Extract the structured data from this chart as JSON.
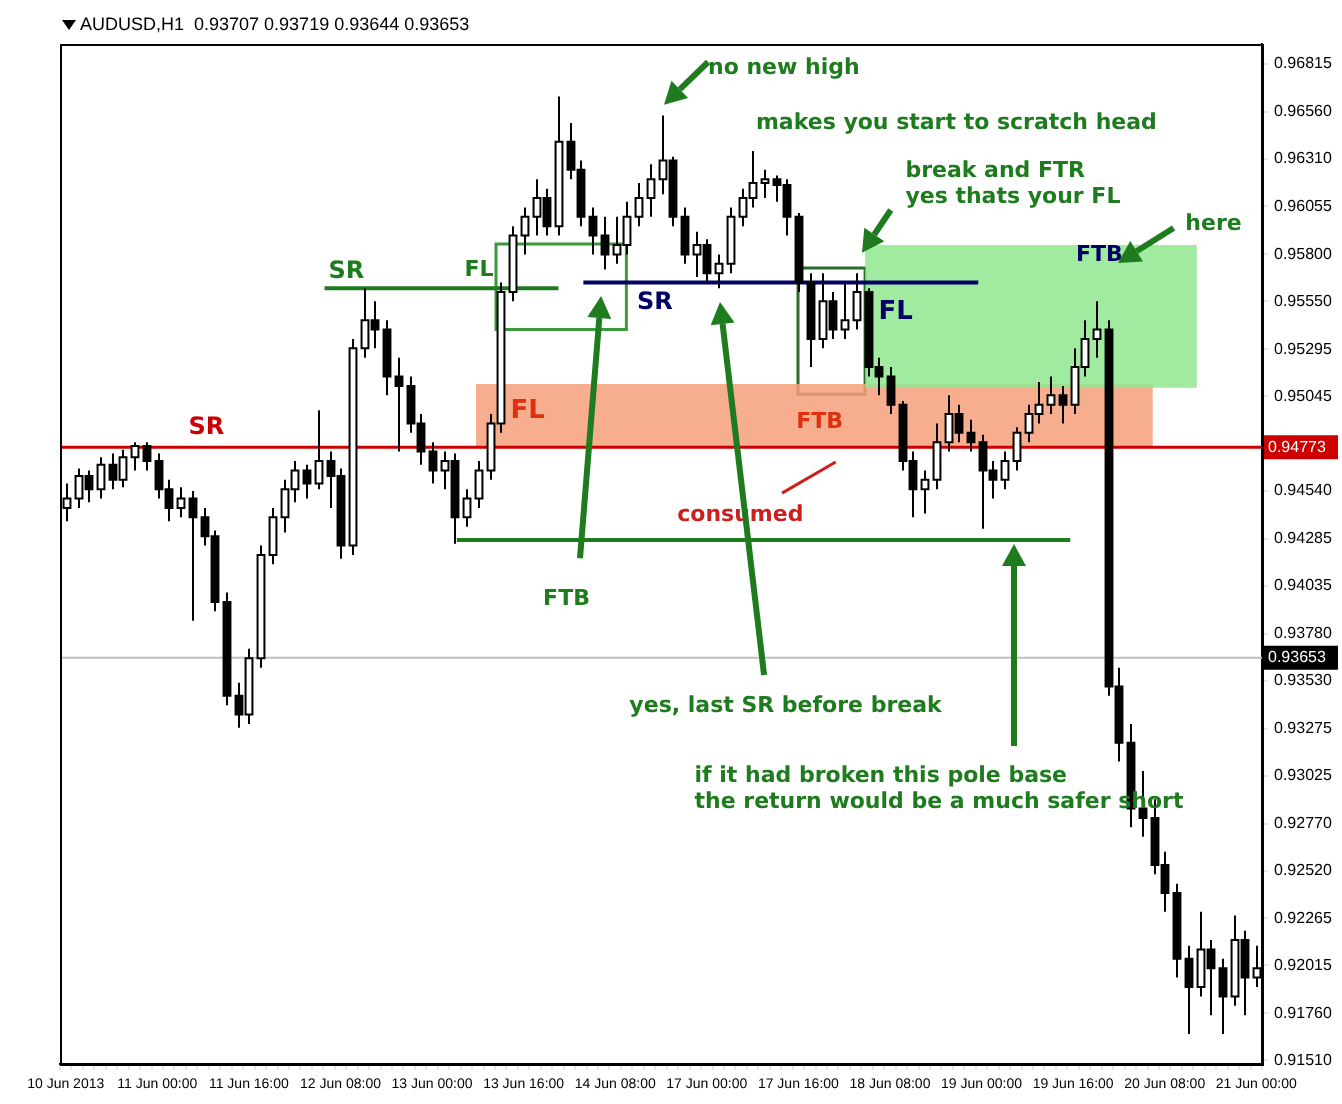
{
  "chart_data": {
    "type": "candlestick",
    "title": "AUDUSD,H1  0.93707 0.93719 0.93644 0.93653",
    "categories": [
      "10 Jun 2013",
      null,
      null,
      null,
      null,
      null,
      null,
      null,
      "11 Jun 00:00",
      null,
      null,
      null,
      null,
      null,
      null,
      null,
      "11 Jun 16:00",
      null,
      null,
      null,
      null,
      null,
      null,
      null,
      "12 Jun 08:00",
      null,
      null,
      null,
      null,
      null,
      null,
      null,
      "13 Jun 00:00",
      null,
      null,
      null,
      null,
      null,
      null,
      null,
      "13 Jun 16:00",
      null,
      null,
      null,
      null,
      null,
      null,
      null,
      "14 Jun 08:00",
      null,
      null,
      null,
      null,
      null,
      null,
      null,
      "17 Jun 00:00",
      null,
      null,
      null,
      null,
      null,
      null,
      null,
      "17 Jun 16:00",
      null,
      null,
      null,
      null,
      null,
      null,
      null,
      "18 Jun 08:00",
      null,
      null,
      null,
      null,
      null,
      null,
      null,
      "19 Jun 00:00",
      null,
      null,
      null,
      null,
      null,
      null,
      null,
      "19 Jun 16:00",
      null,
      null,
      null,
      null,
      null,
      null,
      null,
      "20 Jun 08:00",
      null,
      null,
      null,
      null,
      null,
      null,
      null,
      "21 Jun 00:00"
    ],
    "ohlc": [
      [
        0.9445,
        0.9458,
        0.9438,
        0.945
      ],
      [
        0.945,
        0.9466,
        0.9445,
        0.9462
      ],
      [
        0.9462,
        0.9465,
        0.9448,
        0.9455
      ],
      [
        0.9455,
        0.9472,
        0.945,
        0.9468
      ],
      [
        0.9468,
        0.9474,
        0.9455,
        0.946
      ],
      [
        0.946,
        0.9476,
        0.9456,
        0.9472
      ],
      [
        0.9472,
        0.948,
        0.9465,
        0.9478
      ],
      [
        0.9478,
        0.948,
        0.9465,
        0.947
      ],
      [
        0.947,
        0.9474,
        0.945,
        0.9455
      ],
      [
        0.9455,
        0.946,
        0.9438,
        0.9445
      ],
      [
        0.9445,
        0.9456,
        0.944,
        0.945
      ],
      [
        0.945,
        0.9454,
        0.9385,
        0.944
      ],
      [
        0.944,
        0.9445,
        0.9425,
        0.943
      ],
      [
        0.943,
        0.9433,
        0.939,
        0.9395
      ],
      [
        0.9395,
        0.94,
        0.934,
        0.9345
      ],
      [
        0.9345,
        0.9352,
        0.9328,
        0.9335
      ],
      [
        0.9335,
        0.937,
        0.933,
        0.9365
      ],
      [
        0.9365,
        0.9425,
        0.936,
        0.942
      ],
      [
        0.942,
        0.9445,
        0.9415,
        0.944
      ],
      [
        0.944,
        0.946,
        0.9432,
        0.9455
      ],
      [
        0.9455,
        0.947,
        0.9448,
        0.9465
      ],
      [
        0.9465,
        0.9468,
        0.945,
        0.9458
      ],
      [
        0.9458,
        0.9497,
        0.9455,
        0.947
      ],
      [
        0.947,
        0.9475,
        0.9445,
        0.9462
      ],
      [
        0.9462,
        0.9466,
        0.9418,
        0.9425
      ],
      [
        0.9425,
        0.9535,
        0.942,
        0.953
      ],
      [
        0.953,
        0.9562,
        0.9525,
        0.9545
      ],
      [
        0.9545,
        0.9555,
        0.953,
        0.954
      ],
      [
        0.954,
        0.9545,
        0.9505,
        0.9515
      ],
      [
        0.9515,
        0.9525,
        0.9475,
        0.951
      ],
      [
        0.951,
        0.9515,
        0.9485,
        0.949
      ],
      [
        0.949,
        0.9495,
        0.9468,
        0.9475
      ],
      [
        0.9475,
        0.948,
        0.9458,
        0.9465
      ],
      [
        0.9465,
        0.9475,
        0.9455,
        0.947
      ],
      [
        0.947,
        0.9474,
        0.9426,
        0.944
      ],
      [
        0.944,
        0.9455,
        0.9435,
        0.945
      ],
      [
        0.945,
        0.947,
        0.9445,
        0.9465
      ],
      [
        0.9465,
        0.9495,
        0.946,
        0.949
      ],
      [
        0.949,
        0.9565,
        0.9485,
        0.956
      ],
      [
        0.956,
        0.9595,
        0.9555,
        0.959
      ],
      [
        0.959,
        0.9605,
        0.958,
        0.96
      ],
      [
        0.96,
        0.962,
        0.959,
        0.961
      ],
      [
        0.961,
        0.9615,
        0.959,
        0.9595
      ],
      [
        0.9595,
        0.9664,
        0.959,
        0.964
      ],
      [
        0.964,
        0.965,
        0.962,
        0.9625
      ],
      [
        0.9625,
        0.963,
        0.9595,
        0.96
      ],
      [
        0.96,
        0.9605,
        0.958,
        0.959
      ],
      [
        0.959,
        0.96,
        0.9572,
        0.958
      ],
      [
        0.958,
        0.96,
        0.9575,
        0.9585
      ],
      [
        0.9585,
        0.9608,
        0.958,
        0.96
      ],
      [
        0.96,
        0.9618,
        0.9595,
        0.961
      ],
      [
        0.961,
        0.9628,
        0.96,
        0.962
      ],
      [
        0.962,
        0.9654,
        0.9612,
        0.963
      ],
      [
        0.963,
        0.9632,
        0.9595,
        0.96
      ],
      [
        0.96,
        0.9605,
        0.9575,
        0.958
      ],
      [
        0.958,
        0.9592,
        0.9568,
        0.9585
      ],
      [
        0.9585,
        0.9588,
        0.9565,
        0.957
      ],
      [
        0.957,
        0.958,
        0.9562,
        0.9575
      ],
      [
        0.9575,
        0.9605,
        0.957,
        0.96
      ],
      [
        0.96,
        0.9615,
        0.9595,
        0.961
      ],
      [
        0.961,
        0.9635,
        0.9605,
        0.9618
      ],
      [
        0.9618,
        0.9625,
        0.961,
        0.962
      ],
      [
        0.962,
        0.9622,
        0.9608,
        0.9617
      ],
      [
        0.9617,
        0.962,
        0.959,
        0.96
      ],
      [
        0.96,
        0.9602,
        0.956,
        0.9565
      ],
      [
        0.9565,
        0.957,
        0.952,
        0.9535
      ],
      [
        0.9535,
        0.957,
        0.953,
        0.9555
      ],
      [
        0.9555,
        0.956,
        0.9535,
        0.954
      ],
      [
        0.954,
        0.9565,
        0.9535,
        0.9545
      ],
      [
        0.9545,
        0.957,
        0.954,
        0.956
      ],
      [
        0.956,
        0.9562,
        0.9515,
        0.952
      ],
      [
        0.952,
        0.9525,
        0.9505,
        0.9515
      ],
      [
        0.9515,
        0.952,
        0.9495,
        0.95
      ],
      [
        0.95,
        0.9502,
        0.9465,
        0.947
      ],
      [
        0.947,
        0.9475,
        0.944,
        0.9455
      ],
      [
        0.9455,
        0.9465,
        0.9442,
        0.946
      ],
      [
        0.946,
        0.949,
        0.9455,
        0.948
      ],
      [
        0.948,
        0.9505,
        0.9475,
        0.9495
      ],
      [
        0.9495,
        0.95,
        0.948,
        0.9485
      ],
      [
        0.9485,
        0.9492,
        0.9475,
        0.948
      ],
      [
        0.948,
        0.9484,
        0.9434,
        0.9465
      ],
      [
        0.9465,
        0.947,
        0.945,
        0.946
      ],
      [
        0.946,
        0.9475,
        0.9455,
        0.947
      ],
      [
        0.947,
        0.9488,
        0.9465,
        0.9485
      ],
      [
        0.9485,
        0.95,
        0.948,
        0.9495
      ],
      [
        0.9495,
        0.9512,
        0.949,
        0.95
      ],
      [
        0.95,
        0.9515,
        0.9495,
        0.9505
      ],
      [
        0.9505,
        0.951,
        0.949,
        0.95
      ],
      [
        0.95,
        0.953,
        0.9495,
        0.952
      ],
      [
        0.952,
        0.9545,
        0.9515,
        0.9535
      ],
      [
        0.9535,
        0.9555,
        0.9525,
        0.954
      ],
      [
        0.954,
        0.9545,
        0.9345,
        0.935
      ],
      [
        0.935,
        0.936,
        0.931,
        0.932
      ],
      [
        0.932,
        0.933,
        0.9275,
        0.9285
      ],
      [
        0.9285,
        0.9305,
        0.927,
        0.928
      ],
      [
        0.928,
        0.929,
        0.925,
        0.9255
      ],
      [
        0.9255,
        0.9262,
        0.923,
        0.924
      ],
      [
        0.924,
        0.9245,
        0.9195,
        0.9205
      ],
      [
        0.9205,
        0.9212,
        0.9165,
        0.919
      ],
      [
        0.919,
        0.923,
        0.9185,
        0.921
      ],
      [
        0.921,
        0.9215,
        0.9175,
        0.92
      ],
      [
        0.92,
        0.9205,
        0.9165,
        0.9185
      ],
      [
        0.9185,
        0.9228,
        0.918,
        0.9215
      ],
      [
        0.9215,
        0.922,
        0.9175,
        0.9195
      ],
      [
        0.9195,
        0.9212,
        0.919,
        0.92
      ]
    ],
    "ylim": [
      0.9149,
      0.9692
    ],
    "yticks": [
      0.96815,
      {
        "value": 0.9656,
        "label": "0.96560"
      },
      {
        "value": 0.9631,
        "label": "0.96310"
      },
      0.96055,
      {
        "value": 0.958,
        "label": "0.95800"
      },
      {
        "value": 0.9555,
        "label": "0.95550"
      },
      0.95295,
      0.95045,
      {
        "value": 0.9454,
        "label": "0.94540"
      },
      0.94285,
      0.94035,
      {
        "value": 0.9378,
        "label": "0.93780"
      },
      {
        "value": 0.9353,
        "label": "0.93530"
      },
      0.93275,
      0.93025,
      {
        "value": 0.9277,
        "label": "0.92770"
      },
      {
        "value": 0.9252,
        "label": "0.92520"
      },
      0.92265,
      0.92015,
      {
        "value": 0.9176,
        "label": "0.91760"
      },
      {
        "value": 0.9151,
        "label": "0.91510"
      }
    ],
    "ref_lines": [
      {
        "axis": "y",
        "value": 0.94773,
        "label": "SR",
        "color": "#cc0000"
      },
      {
        "axis": "y",
        "value": 0.93653,
        "label": null,
        "color": "#c0c0c0"
      },
      {
        "axis": "y",
        "value": 0.9562,
        "label": "SR",
        "color": "#1e7b1e"
      },
      {
        "axis": "y",
        "value": 0.9565,
        "label": "SR",
        "color": "#000066"
      },
      {
        "axis": "y",
        "value": 0.9428,
        "label": null,
        "color": "#1e7b1e"
      }
    ],
    "bands": [
      {
        "axis": "y",
        "from": 0.9477,
        "to": 0.9511,
        "label": "FL",
        "color": "#f4a07a"
      },
      {
        "axis": "y",
        "from": 0.9509,
        "to": 0.9585,
        "label": "FL",
        "color": "#90e890"
      }
    ],
    "annotations": [
      "0.94773",
      "0.93653",
      "no new high",
      "makes you start to scratch head",
      "break and FTR\nyes thats your FL",
      "here",
      "FTB",
      "FL",
      "FTB",
      "consumed",
      "FTB",
      "yes, last SR before break",
      "if it had broken this pole base\nthe return would be a much safer short"
    ],
    "grid": false,
    "legend": false
  }
}
